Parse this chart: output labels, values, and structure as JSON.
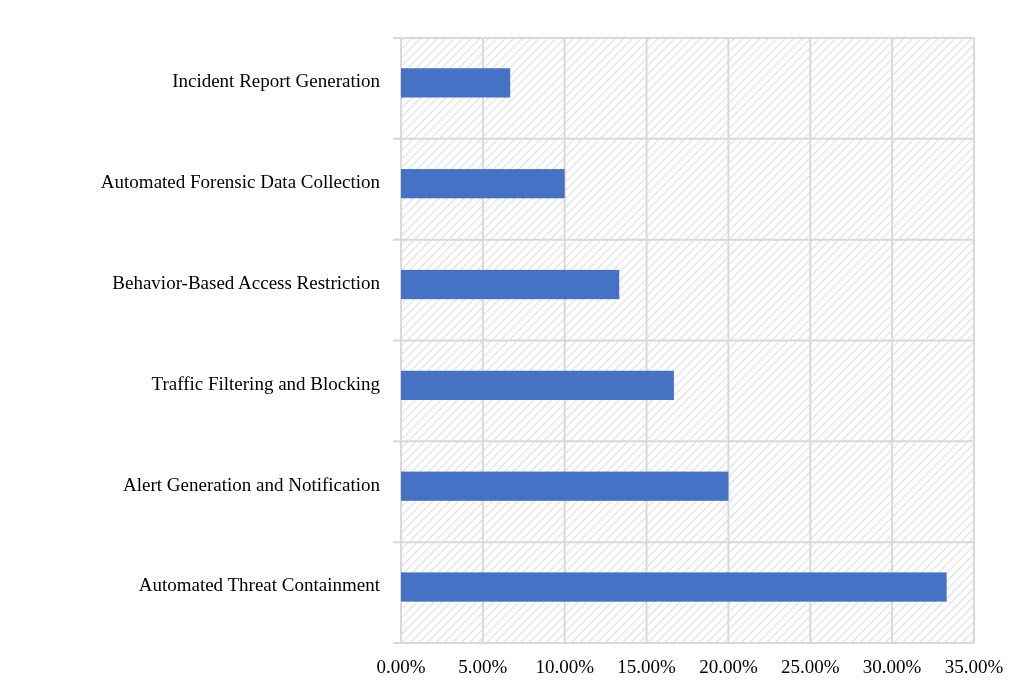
{
  "chart_data": {
    "type": "bar",
    "orientation": "horizontal",
    "categories": [
      "Incident Report Generation",
      "Automated Forensic Data Collection",
      "Behavior-Based Access Restriction",
      "Traffic Filtering and Blocking",
      "Alert Generation and Notification",
      "Automated Threat Containment"
    ],
    "values": [
      6.67,
      10,
      13.33,
      16.67,
      20,
      33.33
    ],
    "color": "#4472c4",
    "xlim": [
      0,
      35
    ],
    "xticks": [
      {
        "value": 0,
        "label": "0.00%"
      },
      {
        "value": 5,
        "label": "5.00%"
      },
      {
        "value": 10,
        "label": "10.00%"
      },
      {
        "value": 15,
        "label": "15.00%"
      },
      {
        "value": 20,
        "label": "20.00%"
      },
      {
        "value": 25,
        "label": "25.00%"
      },
      {
        "value": 30,
        "label": "30.00%"
      },
      {
        "value": 35,
        "label": "35.00%"
      }
    ],
    "grid": true
  }
}
